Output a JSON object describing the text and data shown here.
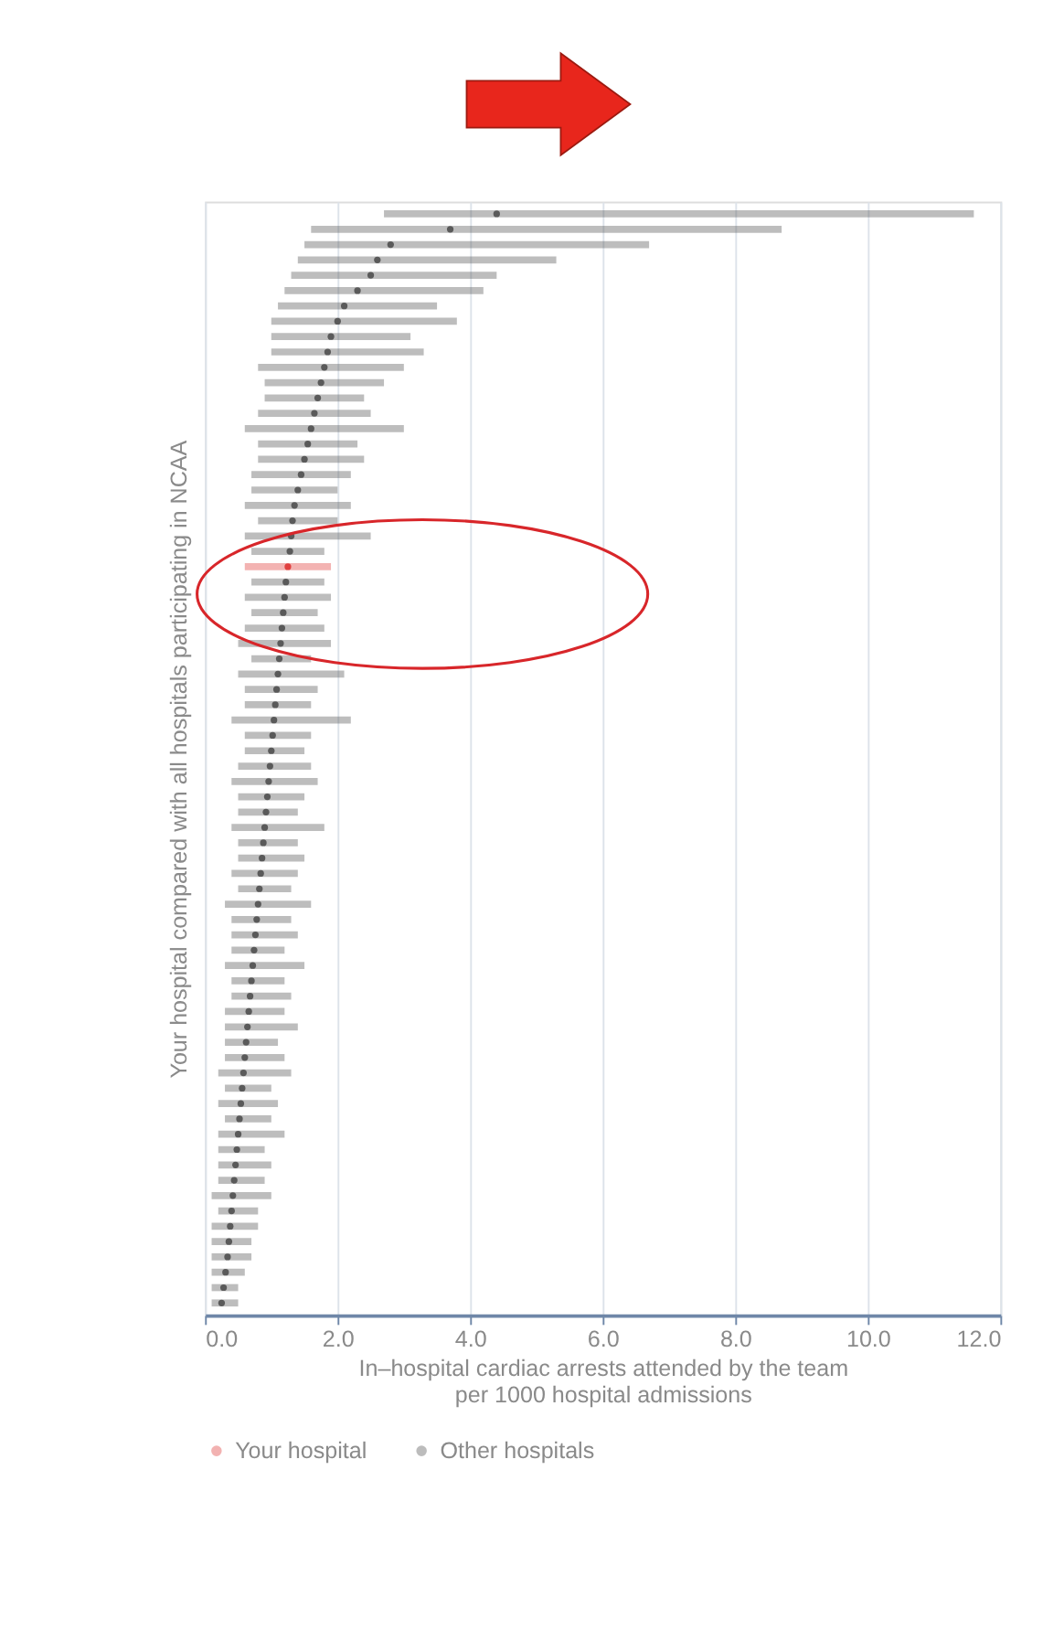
{
  "chart_data": {
    "type": "scatter",
    "orientation": "horizontal",
    "xlabel": "In–hospital cardiac arrests attended by the team\nper 1000 hospital admissions",
    "ylabel": "Your hospital compared with all hospitals participating in NCAA",
    "categories": [
      null,
      null,
      null,
      null,
      null,
      null,
      null,
      null,
      null,
      null,
      null,
      null,
      null,
      null,
      null,
      null,
      null,
      null,
      null,
      null,
      null,
      null,
      null,
      null,
      null,
      null,
      null,
      null,
      null,
      null,
      null,
      null,
      null,
      null,
      null,
      null,
      null,
      null,
      null,
      null,
      null,
      null,
      null,
      null,
      null,
      null,
      null,
      null,
      null,
      null,
      null,
      null,
      null,
      null,
      null,
      null,
      null,
      null,
      null,
      null,
      null,
      null,
      null,
      null,
      null,
      null,
      null,
      null,
      null,
      null,
      null,
      null
    ],
    "xlim": [
      0,
      12
    ],
    "xticks": [
      {
        "value": 0,
        "label": "0.0"
      },
      {
        "value": 2,
        "label": "2.0"
      },
      {
        "value": 4,
        "label": "4.0"
      },
      {
        "value": 6,
        "label": "6.0"
      },
      {
        "value": 8,
        "label": "8.0"
      },
      {
        "value": 10,
        "label": "10.0"
      },
      {
        "value": 12,
        "label": "12.0"
      }
    ],
    "grid": "x",
    "legend": "bottom",
    "marker": "circle",
    "series": [
      {
        "name": "Your hospital",
        "color": "#e0403f",
        "values": [
          null,
          null,
          null,
          null,
          null,
          null,
          null,
          null,
          null,
          null,
          null,
          null,
          null,
          null,
          null,
          null,
          null,
          null,
          null,
          null,
          null,
          null,
          null,
          1.25,
          null,
          null,
          null,
          null,
          null,
          null,
          null,
          null,
          null,
          null,
          null,
          null,
          null,
          null,
          null,
          null,
          null,
          null,
          null,
          null,
          null,
          null,
          null,
          null,
          null,
          null,
          null,
          null,
          null,
          null,
          null,
          null,
          null,
          null,
          null,
          null,
          null,
          null,
          null,
          null,
          null,
          null,
          null,
          null,
          null,
          null,
          null,
          null
        ],
        "errors": [
          null,
          null,
          null,
          null,
          null,
          null,
          null,
          null,
          null,
          null,
          null,
          null,
          null,
          null,
          null,
          null,
          null,
          null,
          null,
          null,
          null,
          null,
          null,
          [
            0.6,
            1.9
          ],
          null,
          null,
          null,
          null,
          null,
          null,
          null,
          null,
          null,
          null,
          null,
          null,
          null,
          null,
          null,
          null,
          null,
          null,
          null,
          null,
          null,
          null,
          null,
          null,
          null,
          null,
          null,
          null,
          null,
          null,
          null,
          null,
          null,
          null,
          null,
          null,
          null,
          null,
          null,
          null,
          null,
          null,
          null,
          null,
          null,
          null,
          null,
          null
        ]
      },
      {
        "name": "Other hospitals",
        "color": "#5a5a5a",
        "values": [
          4.4,
          3.7,
          2.8,
          2.6,
          2.5,
          2.3,
          2.1,
          2.0,
          1.9,
          1.85,
          1.8,
          1.75,
          1.7,
          1.65,
          1.6,
          1.55,
          1.5,
          1.45,
          1.4,
          1.35,
          1.32,
          1.3,
          1.28,
          null,
          1.22,
          1.2,
          1.18,
          1.16,
          1.14,
          1.12,
          1.1,
          1.08,
          1.06,
          1.04,
          1.02,
          1.0,
          0.98,
          0.96,
          0.94,
          0.92,
          0.9,
          0.88,
          0.86,
          0.84,
          0.82,
          0.8,
          0.78,
          0.76,
          0.74,
          0.72,
          0.7,
          0.68,
          0.66,
          0.64,
          0.62,
          0.6,
          0.58,
          0.56,
          0.54,
          0.52,
          0.5,
          0.48,
          0.46,
          0.44,
          0.42,
          0.4,
          0.38,
          0.36,
          0.34,
          0.31,
          0.28,
          0.25
        ],
        "errors": [
          [
            2.7,
            11.6
          ],
          [
            1.6,
            8.7
          ],
          [
            1.5,
            6.7
          ],
          [
            1.4,
            5.3
          ],
          [
            1.3,
            4.4
          ],
          [
            1.2,
            4.2
          ],
          [
            1.1,
            3.5
          ],
          [
            1.0,
            3.8
          ],
          [
            1.0,
            3.1
          ],
          [
            1.0,
            3.3
          ],
          [
            0.8,
            3.0
          ],
          [
            0.9,
            2.7
          ],
          [
            0.9,
            2.4
          ],
          [
            0.8,
            2.5
          ],
          [
            0.6,
            3.0
          ],
          [
            0.8,
            2.3
          ],
          [
            0.8,
            2.4
          ],
          [
            0.7,
            2.2
          ],
          [
            0.7,
            2.0
          ],
          [
            0.6,
            2.2
          ],
          [
            0.8,
            2.0
          ],
          [
            0.6,
            2.5
          ],
          [
            0.7,
            1.8
          ],
          null,
          [
            0.7,
            1.8
          ],
          [
            0.6,
            1.9
          ],
          [
            0.7,
            1.7
          ],
          [
            0.6,
            1.8
          ],
          [
            0.5,
            1.9
          ],
          [
            0.7,
            1.6
          ],
          [
            0.5,
            2.1
          ],
          [
            0.6,
            1.7
          ],
          [
            0.6,
            1.6
          ],
          [
            0.4,
            2.2
          ],
          [
            0.6,
            1.6
          ],
          [
            0.6,
            1.5
          ],
          [
            0.5,
            1.6
          ],
          [
            0.4,
            1.7
          ],
          [
            0.5,
            1.5
          ],
          [
            0.5,
            1.4
          ],
          [
            0.4,
            1.8
          ],
          [
            0.5,
            1.4
          ],
          [
            0.5,
            1.5
          ],
          [
            0.4,
            1.4
          ],
          [
            0.5,
            1.3
          ],
          [
            0.3,
            1.6
          ],
          [
            0.4,
            1.3
          ],
          [
            0.4,
            1.4
          ],
          [
            0.4,
            1.2
          ],
          [
            0.3,
            1.5
          ],
          [
            0.4,
            1.2
          ],
          [
            0.4,
            1.3
          ],
          [
            0.3,
            1.2
          ],
          [
            0.3,
            1.4
          ],
          [
            0.3,
            1.1
          ],
          [
            0.3,
            1.2
          ],
          [
            0.2,
            1.3
          ],
          [
            0.3,
            1.0
          ],
          [
            0.2,
            1.1
          ],
          [
            0.3,
            1.0
          ],
          [
            0.2,
            1.2
          ],
          [
            0.2,
            0.9
          ],
          [
            0.2,
            1.0
          ],
          [
            0.2,
            0.9
          ],
          [
            0.1,
            1.0
          ],
          [
            0.2,
            0.8
          ],
          [
            0.1,
            0.8
          ],
          [
            0.1,
            0.7
          ],
          [
            0.1,
            0.7
          ],
          [
            0.1,
            0.6
          ],
          [
            0.1,
            0.5
          ],
          [
            0.1,
            0.5
          ]
        ]
      }
    ]
  }
}
